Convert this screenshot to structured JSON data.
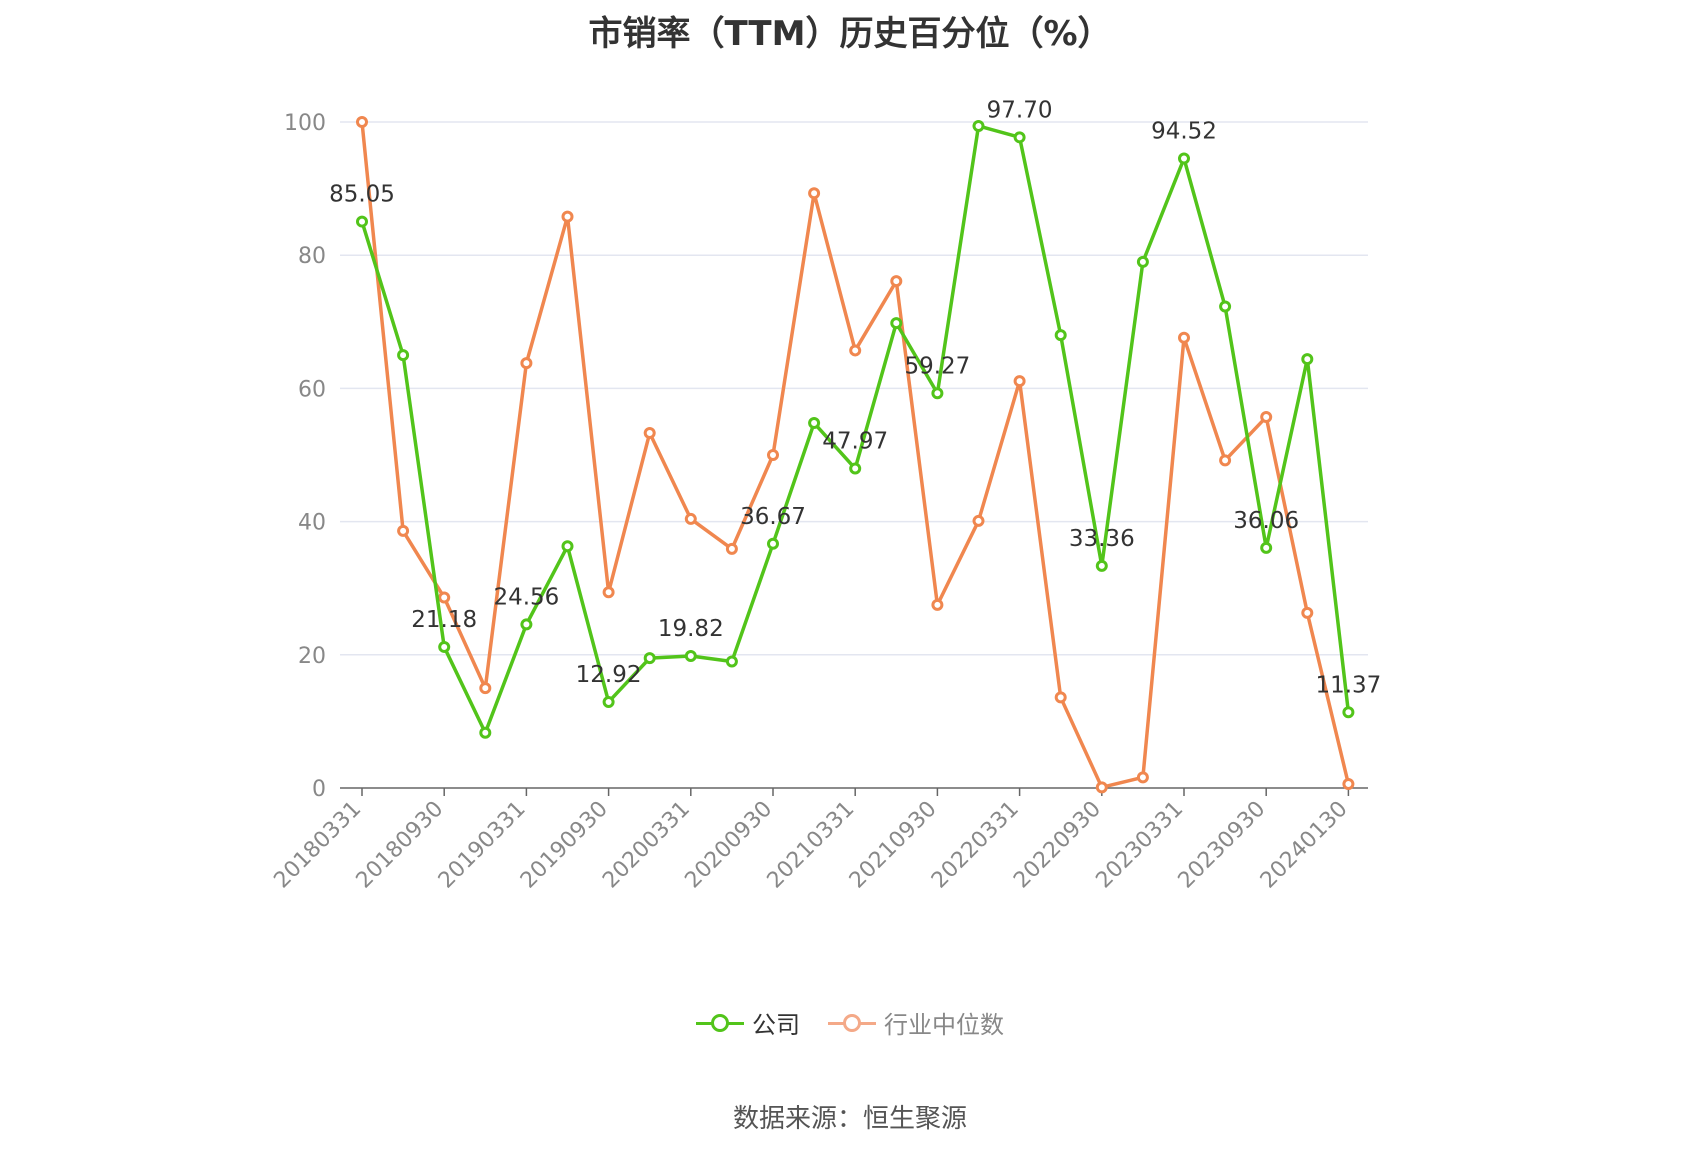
{
  "title": "市销率（TTM）历史百分位（%）",
  "source_text": "数据来源：恒生聚源",
  "colors": {
    "company": "#52c41a",
    "industry": "#f0874f",
    "grid": "#e3e6f0",
    "axis": "#666666"
  },
  "legend": [
    {
      "name": "公司",
      "color": "#52c41a"
    },
    {
      "name": "行业中位数",
      "color": "#f4a988"
    }
  ],
  "chart_data": {
    "type": "line",
    "ylim": [
      0,
      100
    ],
    "y_ticks": [
      0,
      20,
      40,
      60,
      80,
      100
    ],
    "x": [
      "20180331",
      "20180630",
      "20180930",
      "20181231",
      "20190331",
      "20190630",
      "20190930",
      "20191231",
      "20200331",
      "20200630",
      "20200930",
      "20201231",
      "20210331",
      "20210630",
      "20210930",
      "20211231",
      "20220331",
      "20220630",
      "20220930",
      "20221231",
      "20230331",
      "20230630",
      "20230930",
      "20231231",
      "20240130"
    ],
    "x_tick_labels": [
      "20180331",
      "20180930",
      "20190331",
      "20190930",
      "20200331",
      "20200930",
      "20210331",
      "20210930",
      "20220331",
      "20220930",
      "20230331",
      "20230930",
      "20240130"
    ],
    "grid": true,
    "legend_position": "bottom-center",
    "series": [
      {
        "name": "公司",
        "values": [
          85.05,
          65.0,
          21.18,
          8.3,
          24.56,
          36.3,
          12.92,
          19.5,
          19.82,
          19.0,
          36.67,
          54.8,
          47.97,
          69.8,
          59.27,
          99.4,
          97.7,
          68.0,
          33.36,
          79.0,
          94.52,
          72.3,
          36.06,
          64.4,
          11.37
        ],
        "labels": [
          "85.05",
          "",
          "21.18",
          "",
          "24.56",
          "",
          "12.92",
          "",
          "19.82",
          "",
          "36.67",
          "",
          "47.97",
          "",
          "59.27",
          "",
          "97.70",
          "",
          "33.36",
          "",
          "94.52",
          "",
          "36.06",
          "",
          "11.37"
        ]
      },
      {
        "name": "行业中位数",
        "values": [
          100.0,
          38.6,
          28.6,
          15.0,
          63.8,
          85.8,
          29.4,
          53.3,
          40.4,
          35.9,
          50.0,
          89.3,
          65.7,
          76.1,
          27.5,
          40.1,
          61.1,
          13.6,
          0.1,
          1.6,
          67.6,
          49.2,
          55.7,
          26.3,
          0.6
        ]
      }
    ]
  }
}
